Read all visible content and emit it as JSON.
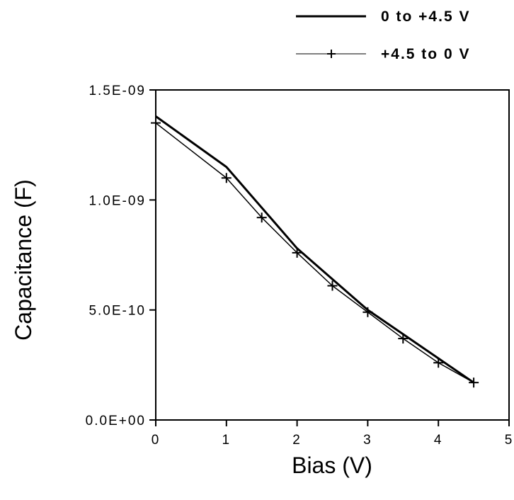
{
  "chart_data": {
    "type": "line",
    "xlabel": "Bias (V)",
    "ylabel": "Capacitance (F)",
    "xlim": [
      0,
      5
    ],
    "ylim": [
      0,
      1.5e-09
    ],
    "x_ticks": [
      "0",
      "1",
      "2",
      "3",
      "4",
      "5"
    ],
    "y_ticks": [
      "0.0E+00",
      "5.0E-10",
      "1.0E-09",
      "1.5E-09"
    ],
    "grid": false,
    "legend_position": "top-right",
    "series": [
      {
        "name": "0 to +4.5 V",
        "marker": "none",
        "color": "#000000",
        "x": [
          0,
          1,
          2,
          3,
          4,
          4.5
        ],
        "y": [
          1.38e-09,
          1.15e-09,
          7.8e-10,
          5e-10,
          2.8e-10,
          1.7e-10
        ]
      },
      {
        "name": "+4.5 to 0 V",
        "marker": "plus",
        "color": "#000000",
        "x": [
          0,
          1,
          1.5,
          2,
          2.5,
          3,
          3.5,
          4,
          4.5
        ],
        "y": [
          1.35e-09,
          1.1e-09,
          9.2e-10,
          7.6e-10,
          6.1e-10,
          4.9e-10,
          3.7e-10,
          2.6e-10,
          1.7e-10
        ]
      }
    ]
  }
}
